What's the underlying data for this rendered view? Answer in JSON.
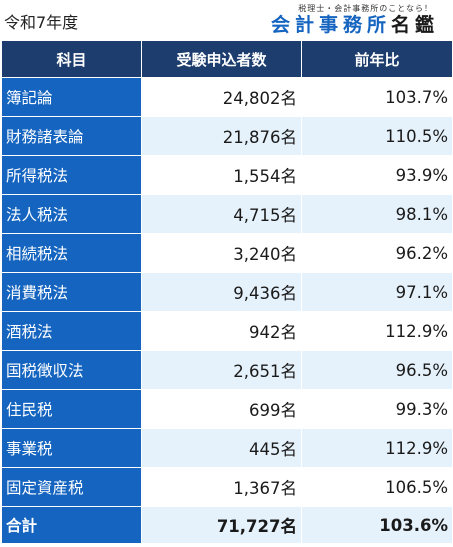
{
  "header": {
    "year_label": "令和7年度",
    "logo": {
      "tagline": "税理士・会計事務所のことなら！",
      "name_part1": "会計事務所",
      "name_part2": "名鑑"
    }
  },
  "table": {
    "columns": [
      "科目",
      "受験申込者数",
      "前年比"
    ],
    "rows": [
      {
        "subject": "簿記論",
        "applicants": "24,802名",
        "yoy": "103.7%"
      },
      {
        "subject": "財務諸表論",
        "applicants": "21,876名",
        "yoy": "110.5%"
      },
      {
        "subject": "所得税法",
        "applicants": "1,554名",
        "yoy": "93.9%"
      },
      {
        "subject": "法人税法",
        "applicants": "4,715名",
        "yoy": "98.1%"
      },
      {
        "subject": "相続税法",
        "applicants": "3,240名",
        "yoy": "96.2%"
      },
      {
        "subject": "消費税法",
        "applicants": "9,436名",
        "yoy": "97.1%"
      },
      {
        "subject": "酒税法",
        "applicants": "942名",
        "yoy": "112.9%"
      },
      {
        "subject": "国税徴収法",
        "applicants": "2,651名",
        "yoy": "96.5%"
      },
      {
        "subject": "住民税",
        "applicants": "699名",
        "yoy": "99.3%"
      },
      {
        "subject": "事業税",
        "applicants": "445名",
        "yoy": "112.9%"
      },
      {
        "subject": "固定資産税",
        "applicants": "1,367名",
        "yoy": "106.5%"
      }
    ],
    "total": {
      "subject": "合計",
      "applicants": "71,727名",
      "yoy": "103.6%"
    }
  },
  "colors": {
    "header_bg": "#1c3d6e",
    "label_bg": "#1565c0",
    "stripe_bg": "#e6f2fb"
  }
}
